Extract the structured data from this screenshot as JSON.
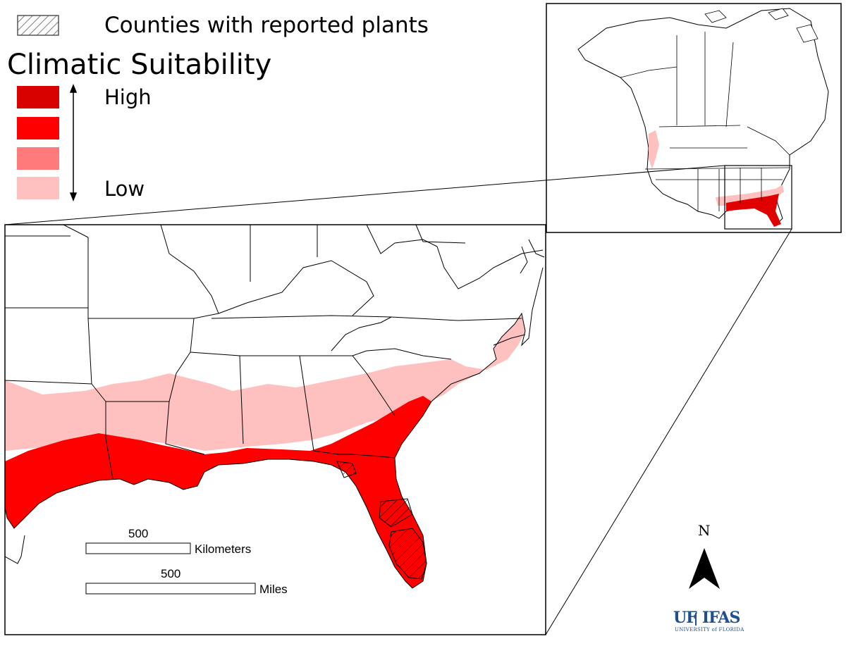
{
  "legend": {
    "hatch_label": "Counties with reported plants",
    "title": "Climatic Suitability",
    "high_label": "High",
    "low_label": "Low",
    "swatch_colors": [
      "#d90000",
      "#ff0000",
      "#ff7a7a",
      "#ffc0c0"
    ],
    "hatch_color": "#555555"
  },
  "scale_bar": {
    "km_value": "500",
    "km_unit": "Kilometers",
    "mi_value": "500",
    "mi_unit": "Miles"
  },
  "north_arrow": {
    "label": "N",
    "icon": "north-arrow-icon"
  },
  "logo": {
    "main_uf": "UF",
    "main_ifas": "IFAS",
    "sub": "UNIVERSITY of FLORIDA",
    "color": "#1f4f8f"
  },
  "map": {
    "low_color": "#ffc0c0",
    "high_color": "#ff0000",
    "very_high_color": "#d90000",
    "border_color": "#000000"
  }
}
